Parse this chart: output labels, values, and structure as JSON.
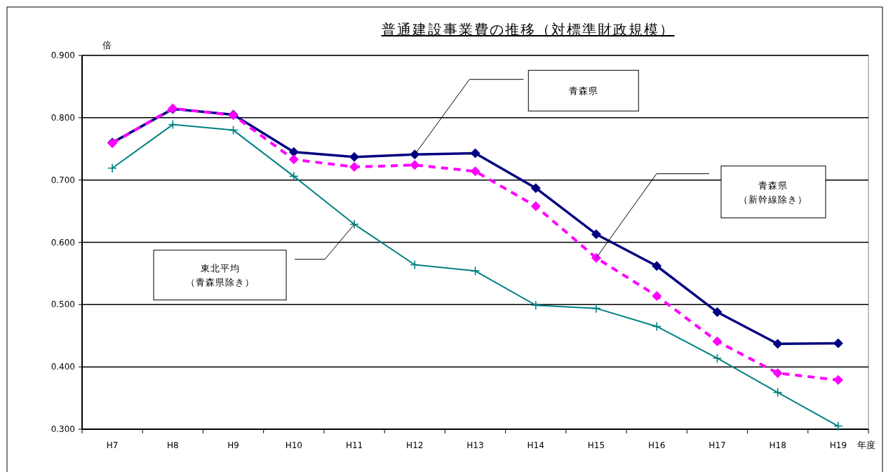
{
  "chart_data": {
    "type": "line",
    "title": "普通建設事業費の推移（対標準財政規模）",
    "ylabel": "倍",
    "xlabel": "年度",
    "categories": [
      "H7",
      "H8",
      "H9",
      "H10",
      "H11",
      "H12",
      "H13",
      "H14",
      "H15",
      "H16",
      "H17",
      "H18",
      "H19"
    ],
    "series": [
      {
        "color": "#000080",
        "marker": "diamond",
        "line_style": "solid",
        "values": [
          0.76,
          0.814,
          0.805,
          0.745,
          0.737,
          0.741,
          0.743,
          0.687,
          0.613,
          0.562,
          0.488,
          0.437,
          0.438
        ]
      },
      {
        "color": "#ff00ff",
        "marker": "diamond",
        "line_style": "dashed",
        "values": [
          0.759,
          0.815,
          0.804,
          0.733,
          0.721,
          0.724,
          0.714,
          0.658,
          0.575,
          0.514,
          0.441,
          0.39,
          0.379
        ]
      },
      {
        "color": "#008080",
        "marker": "cross",
        "line_style": "solid",
        "values": [
          0.719,
          0.789,
          0.78,
          0.706,
          0.629,
          0.564,
          0.554,
          0.499,
          0.494,
          0.465,
          0.414,
          0.359,
          0.305
        ]
      }
    ],
    "annotations": [
      "青森県",
      "青森県（新幹線除き）",
      "東北平均（青森県除き）"
    ],
    "ylim": [
      0.3,
      0.9
    ],
    "yticks": [
      {
        "value": 0.3,
        "label": "0.300"
      },
      {
        "value": 0.4,
        "label": "0.400"
      },
      {
        "value": 0.5,
        "label": "0.500"
      },
      {
        "value": 0.6,
        "label": "0.600"
      },
      {
        "value": 0.7,
        "label": "0.700"
      },
      {
        "value": 0.8,
        "label": "0.800"
      },
      {
        "value": 0.9,
        "label": "0.900"
      }
    ],
    "grid": "y"
  }
}
